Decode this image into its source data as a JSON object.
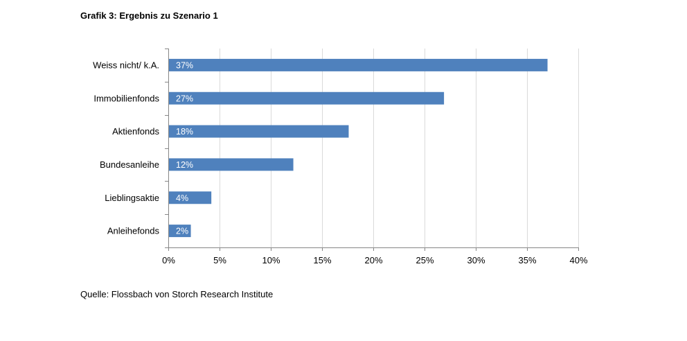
{
  "title": "Grafik 3: Ergebnis zu Szenario 1",
  "source": "Quelle: Flossbach von Storch Research Institute",
  "chart_data": {
    "type": "bar",
    "orientation": "horizontal",
    "title": "Grafik 3: Ergebnis zu Szenario 1",
    "xlabel": "",
    "ylabel": "",
    "categories": [
      "Weiss nicht/ k.A.",
      "Immobilienfonds",
      "Aktienfonds",
      "Bundesanleihe",
      "Lieblingsaktie",
      "Anleihefonds"
    ],
    "values": [
      37,
      27,
      18,
      12,
      4,
      2
    ],
    "bar_values": [
      37,
      26.9,
      17.6,
      12.2,
      4.2,
      2.2
    ],
    "data_labels": [
      "37%",
      "27%",
      "18%",
      "12%",
      "4%",
      "2%"
    ],
    "xlim": [
      0,
      40
    ],
    "x_ticks": [
      0,
      5,
      10,
      15,
      20,
      25,
      30,
      35,
      40
    ],
    "x_tick_labels": [
      "0%",
      "5%",
      "10%",
      "15%",
      "20%",
      "25%",
      "30%",
      "35%",
      "40%"
    ],
    "grid": "vertical",
    "legend": "none",
    "bar_color": "#4f81bd"
  }
}
